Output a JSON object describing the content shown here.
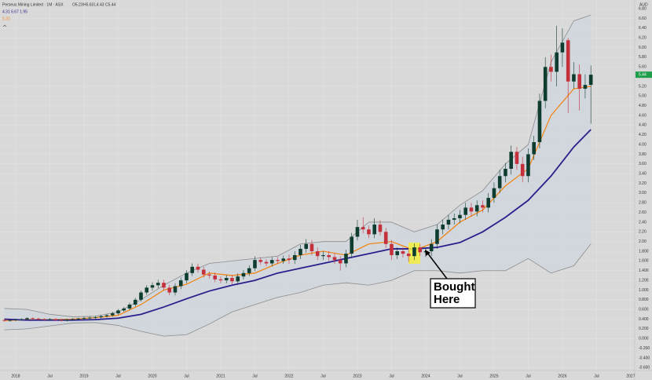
{
  "header": {
    "title": "Perseus Mining Limited · 1M · ASX",
    "ohlc": [
      "O5.23",
      "H5.63",
      "L4.43",
      "C5.44"
    ],
    "indicator": "4.31 6.67 1.95",
    "ema": "5.20",
    "currency": "AUD"
  },
  "annotation": {
    "lines": [
      "Bought",
      "Here"
    ]
  },
  "chart_data": {
    "type": "candlestick",
    "up_color": "#0e3d30",
    "down_color": "#c4303c",
    "background": "#d9d9d9",
    "grid": true,
    "grid_color": "#e2e2e2",
    "xlim": [
      -2.76,
      108.7
    ],
    "xticks": [
      {
        "value": 0,
        "label": "2018"
      },
      {
        "value": 6,
        "label": "Jul"
      },
      {
        "value": 12,
        "label": "2019"
      },
      {
        "value": 18,
        "label": "Jul"
      },
      {
        "value": 24,
        "label": "2020"
      },
      {
        "value": 30,
        "label": "Jul"
      },
      {
        "value": 36,
        "label": "2021"
      },
      {
        "value": 42,
        "label": "Jul"
      },
      {
        "value": 48,
        "label": "2022"
      },
      {
        "value": 54,
        "label": "Jul"
      },
      {
        "value": 60,
        "label": "2023"
      },
      {
        "value": 66,
        "label": "Jul"
      },
      {
        "value": 72,
        "label": "2024"
      },
      {
        "value": 78,
        "label": "Jul"
      },
      {
        "value": 84,
        "label": "2025"
      },
      {
        "value": 90,
        "label": "Jul"
      },
      {
        "value": 96,
        "label": "2026"
      },
      {
        "value": 102,
        "label": "Jul"
      },
      {
        "value": 108,
        "label": "2027"
      }
    ],
    "ylim": [
      -0.66,
      6.98
    ],
    "yticks": [
      {
        "value": 6.8,
        "label": "6.80"
      },
      {
        "value": 6.6,
        "label": "6.60"
      },
      {
        "value": 6.4,
        "label": "6.40"
      },
      {
        "value": 6.2,
        "label": "6.20"
      },
      {
        "value": 6,
        "label": "6.00"
      },
      {
        "value": 5.8,
        "label": "5.80"
      },
      {
        "value": 5.6,
        "label": "5.60"
      },
      {
        "value": 5.2,
        "label": "5.20"
      },
      {
        "value": 5,
        "label": "5.00"
      },
      {
        "value": 4.8,
        "label": "4.80"
      },
      {
        "value": 4.6,
        "label": "4.60"
      },
      {
        "value": 4.4,
        "label": "4.40"
      },
      {
        "value": 4.2,
        "label": "4.20"
      },
      {
        "value": 4,
        "label": "4.00"
      },
      {
        "value": 3.8,
        "label": "3.80"
      },
      {
        "value": 3.6,
        "label": "3.60"
      },
      {
        "value": 3.4,
        "label": "3.40"
      },
      {
        "value": 3.2,
        "label": "3.20"
      },
      {
        "value": 3,
        "label": "3.00"
      },
      {
        "value": 2.8,
        "label": "2.80"
      },
      {
        "value": 2.6,
        "label": "2.60"
      },
      {
        "value": 2.4,
        "label": "2.40"
      },
      {
        "value": 2.2,
        "label": "2.20"
      },
      {
        "value": 2,
        "label": "2.00"
      },
      {
        "value": 1.8,
        "label": "1.800"
      },
      {
        "value": 1.6,
        "label": "1.600"
      },
      {
        "value": 1.4,
        "label": "1.400"
      },
      {
        "value": 1.2,
        "label": "1.200"
      },
      {
        "value": 1,
        "label": "1.000"
      },
      {
        "value": 0.8,
        "label": "0.800"
      },
      {
        "value": 0.6,
        "label": "0.600"
      },
      {
        "value": 0.4,
        "label": "0.400"
      },
      {
        "value": 0.2,
        "label": "0.200"
      },
      {
        "value": 0,
        "label": "0.000"
      },
      {
        "value": -0.2,
        "label": "-0.200"
      },
      {
        "value": -0.4,
        "label": "-0.400"
      },
      {
        "value": -0.6,
        "label": "-0.600"
      }
    ],
    "x": [
      -2,
      -1,
      0,
      1,
      2,
      3,
      4,
      5,
      6,
      7,
      8,
      9,
      10,
      11,
      12,
      13,
      14,
      15,
      16,
      17,
      18,
      19,
      20,
      21,
      22,
      23,
      24,
      25,
      26,
      27,
      28,
      29,
      30,
      31,
      32,
      33,
      34,
      35,
      36,
      37,
      38,
      39,
      40,
      41,
      42,
      43,
      44,
      45,
      46,
      47,
      48,
      49,
      50,
      51,
      52,
      53,
      54,
      55,
      56,
      57,
      58,
      59,
      60,
      61,
      62,
      63,
      64,
      65,
      66,
      67,
      68,
      69,
      70,
      71,
      72,
      73,
      74,
      75,
      76,
      77,
      78,
      79,
      80,
      81,
      82,
      83,
      84,
      85,
      86,
      87,
      88,
      89,
      90,
      91,
      92,
      93,
      94,
      95,
      96,
      97,
      98,
      99,
      100,
      101
    ],
    "open": [
      0.38,
      0.37,
      0.38,
      0.39,
      0.4,
      0.42,
      0.41,
      0.4,
      0.39,
      0.4,
      0.38,
      0.37,
      0.39,
      0.4,
      0.41,
      0.42,
      0.43,
      0.44,
      0.46,
      0.48,
      0.52,
      0.58,
      0.62,
      0.7,
      0.8,
      0.95,
      1.05,
      1.1,
      1.15,
      1.05,
      0.95,
      1.08,
      1.2,
      1.35,
      1.48,
      1.42,
      1.32,
      1.3,
      1.22,
      1.2,
      1.25,
      1.18,
      1.28,
      1.35,
      1.45,
      1.62,
      1.58,
      1.55,
      1.62,
      1.6,
      1.65,
      1.62,
      1.72,
      1.85,
      1.95,
      1.8,
      1.7,
      1.72,
      1.68,
      1.62,
      1.55,
      1.75,
      2.1,
      2.3,
      2.25,
      2.15,
      2.35,
      2.2,
      1.95,
      1.72,
      1.8,
      1.75,
      1.7,
      1.88,
      1.78,
      1.8,
      1.95,
      2.25,
      2.35,
      2.45,
      2.48,
      2.55,
      2.7,
      2.62,
      2.75,
      2.7,
      2.9,
      3.1,
      3.35,
      3.5,
      3.85,
      3.6,
      3.35,
      3.8,
      4.05,
      4.9,
      5.6,
      5.5,
      5.9,
      6.15,
      5.3,
      5.45,
      5.15,
      5.23
    ],
    "high": [
      0.4,
      0.4,
      0.41,
      0.42,
      0.44,
      0.44,
      0.43,
      0.42,
      0.42,
      0.42,
      0.4,
      0.41,
      0.42,
      0.43,
      0.45,
      0.46,
      0.47,
      0.49,
      0.51,
      0.55,
      0.61,
      0.65,
      0.74,
      0.84,
      0.99,
      1.1,
      1.16,
      1.21,
      1.21,
      1.11,
      1.14,
      1.26,
      1.41,
      1.55,
      1.54,
      1.48,
      1.38,
      1.36,
      1.28,
      1.31,
      1.31,
      1.34,
      1.41,
      1.51,
      1.7,
      1.68,
      1.64,
      1.68,
      1.68,
      1.71,
      1.73,
      1.8,
      1.93,
      2.05,
      2.03,
      1.88,
      1.8,
      1.8,
      1.76,
      1.7,
      1.83,
      2.18,
      2.45,
      2.5,
      2.33,
      2.48,
      2.44,
      2.28,
      2.03,
      1.88,
      1.88,
      1.83,
      1.96,
      1.95,
      1.88,
      2.05,
      2.35,
      2.45,
      2.55,
      2.58,
      2.65,
      2.8,
      2.8,
      2.85,
      2.85,
      3,
      3.22,
      3.48,
      3.62,
      3.98,
      3.95,
      3.75,
      3.92,
      4.18,
      5.05,
      5.8,
      5.85,
      6.45,
      6.4,
      6.2,
      5.7,
      5.65,
      5.45,
      5.63
    ],
    "low": [
      0.35,
      0.35,
      0.36,
      0.37,
      0.38,
      0.39,
      0.38,
      0.37,
      0.37,
      0.36,
      0.35,
      0.35,
      0.37,
      0.38,
      0.38,
      0.39,
      0.4,
      0.41,
      0.43,
      0.45,
      0.49,
      0.55,
      0.59,
      0.66,
      0.76,
      0.9,
      0.99,
      1.04,
      0.99,
      0.89,
      0.89,
      1.02,
      1.14,
      1.29,
      1.36,
      1.26,
      1.24,
      1.16,
      1.14,
      1.14,
      1.12,
      1.12,
      1.22,
      1.29,
      1.39,
      1.52,
      1.49,
      1.49,
      1.54,
      1.54,
      1.54,
      1.54,
      1.64,
      1.77,
      1.72,
      1.62,
      1.62,
      1.6,
      1.54,
      1.4,
      1.47,
      1.67,
      2.02,
      2.17,
      2.07,
      2.07,
      2.12,
      1.87,
      1.62,
      1.64,
      1.67,
      1.58,
      1.62,
      1.7,
      1.68,
      1.7,
      1.85,
      2.15,
      2.25,
      2.35,
      2.38,
      2.45,
      2.52,
      2.52,
      2.6,
      2.6,
      2.8,
      3,
      3.22,
      3.38,
      3.48,
      3.22,
      3.22,
      3.68,
      3.92,
      4.75,
      5.3,
      5.2,
      5.6,
      4.65,
      5.15,
      4.7,
      4.95,
      4.43
    ],
    "close": [
      0.37,
      0.38,
      0.39,
      0.4,
      0.42,
      0.41,
      0.4,
      0.39,
      0.4,
      0.38,
      0.37,
      0.39,
      0.4,
      0.41,
      0.42,
      0.43,
      0.44,
      0.46,
      0.48,
      0.52,
      0.58,
      0.62,
      0.7,
      0.8,
      0.95,
      1.05,
      1.1,
      1.15,
      1.05,
      0.95,
      1.08,
      1.2,
      1.35,
      1.48,
      1.42,
      1.32,
      1.3,
      1.22,
      1.2,
      1.25,
      1.18,
      1.28,
      1.35,
      1.45,
      1.62,
      1.58,
      1.55,
      1.62,
      1.6,
      1.65,
      1.62,
      1.72,
      1.85,
      1.95,
      1.8,
      1.7,
      1.72,
      1.68,
      1.62,
      1.55,
      1.75,
      2.1,
      2.3,
      2.25,
      2.15,
      2.35,
      2.2,
      1.95,
      1.72,
      1.8,
      1.75,
      1.7,
      1.88,
      1.78,
      1.8,
      1.95,
      2.25,
      2.35,
      2.45,
      2.48,
      2.55,
      2.7,
      2.62,
      2.75,
      2.7,
      2.9,
      3.1,
      3.35,
      3.5,
      3.85,
      3.6,
      3.35,
      3.8,
      4.05,
      4.9,
      5.6,
      5.5,
      5.9,
      6.1,
      5.3,
      5.45,
      5.15,
      5.23,
      5.44
    ],
    "last_color": "#1f9e4a",
    "lines": [
      {
        "color": "#f0871a",
        "x": [
          -2,
          2,
          6,
          10,
          14,
          18,
          22,
          26,
          30,
          34,
          38,
          42,
          46,
          50,
          54,
          58,
          62,
          66,
          70,
          74,
          78,
          82,
          86,
          90,
          94,
          98,
          101
        ],
        "values": [
          0.37,
          0.39,
          0.39,
          0.4,
          0.43,
          0.48,
          0.7,
          1,
          1.12,
          1.35,
          1.3,
          1.35,
          1.55,
          1.72,
          1.8,
          1.72,
          1.95,
          2,
          1.82,
          2,
          2.4,
          2.65,
          3.15,
          3.5,
          4.6,
          5.15,
          5.2
        ]
      },
      {
        "color": "#2a1f8c",
        "x": [
          -2,
          2,
          6,
          10,
          14,
          18,
          22,
          26,
          30,
          34,
          38,
          42,
          46,
          50,
          54,
          58,
          62,
          66,
          70,
          74,
          78,
          82,
          86,
          90,
          94,
          98,
          101
        ],
        "values": [
          0.4,
          0.38,
          0.38,
          0.38,
          0.39,
          0.42,
          0.5,
          0.65,
          0.82,
          0.98,
          1.1,
          1.2,
          1.35,
          1.45,
          1.55,
          1.65,
          1.75,
          1.85,
          1.85,
          1.88,
          1.98,
          2.2,
          2.5,
          2.85,
          3.35,
          3.95,
          4.31
        ]
      }
    ],
    "bollinger": {
      "color": "#8c8c8c",
      "fill": "#cfd6dd",
      "x": [
        -2,
        2,
        6,
        10,
        14,
        18,
        22,
        26,
        30,
        34,
        38,
        42,
        46,
        50,
        54,
        58,
        62,
        66,
        70,
        74,
        78,
        82,
        86,
        90,
        94,
        98,
        101
      ],
      "upper": [
        0.62,
        0.6,
        0.5,
        0.45,
        0.46,
        0.55,
        0.8,
        1.1,
        1.35,
        1.55,
        1.6,
        1.65,
        1.7,
        1.95,
        2,
        2,
        2.4,
        2.4,
        2.2,
        2.35,
        2.75,
        3.05,
        3.6,
        4,
        5.7,
        6.55,
        6.67
      ],
      "lower": [
        0.18,
        0.2,
        0.26,
        0.32,
        0.33,
        0.27,
        0.15,
        0.05,
        0.08,
        0.3,
        0.55,
        0.7,
        0.85,
        0.95,
        1.1,
        1.15,
        1.1,
        1.2,
        1.4,
        1.4,
        1.35,
        1.4,
        1.4,
        1.65,
        1.35,
        1.5,
        1.95
      ]
    }
  }
}
